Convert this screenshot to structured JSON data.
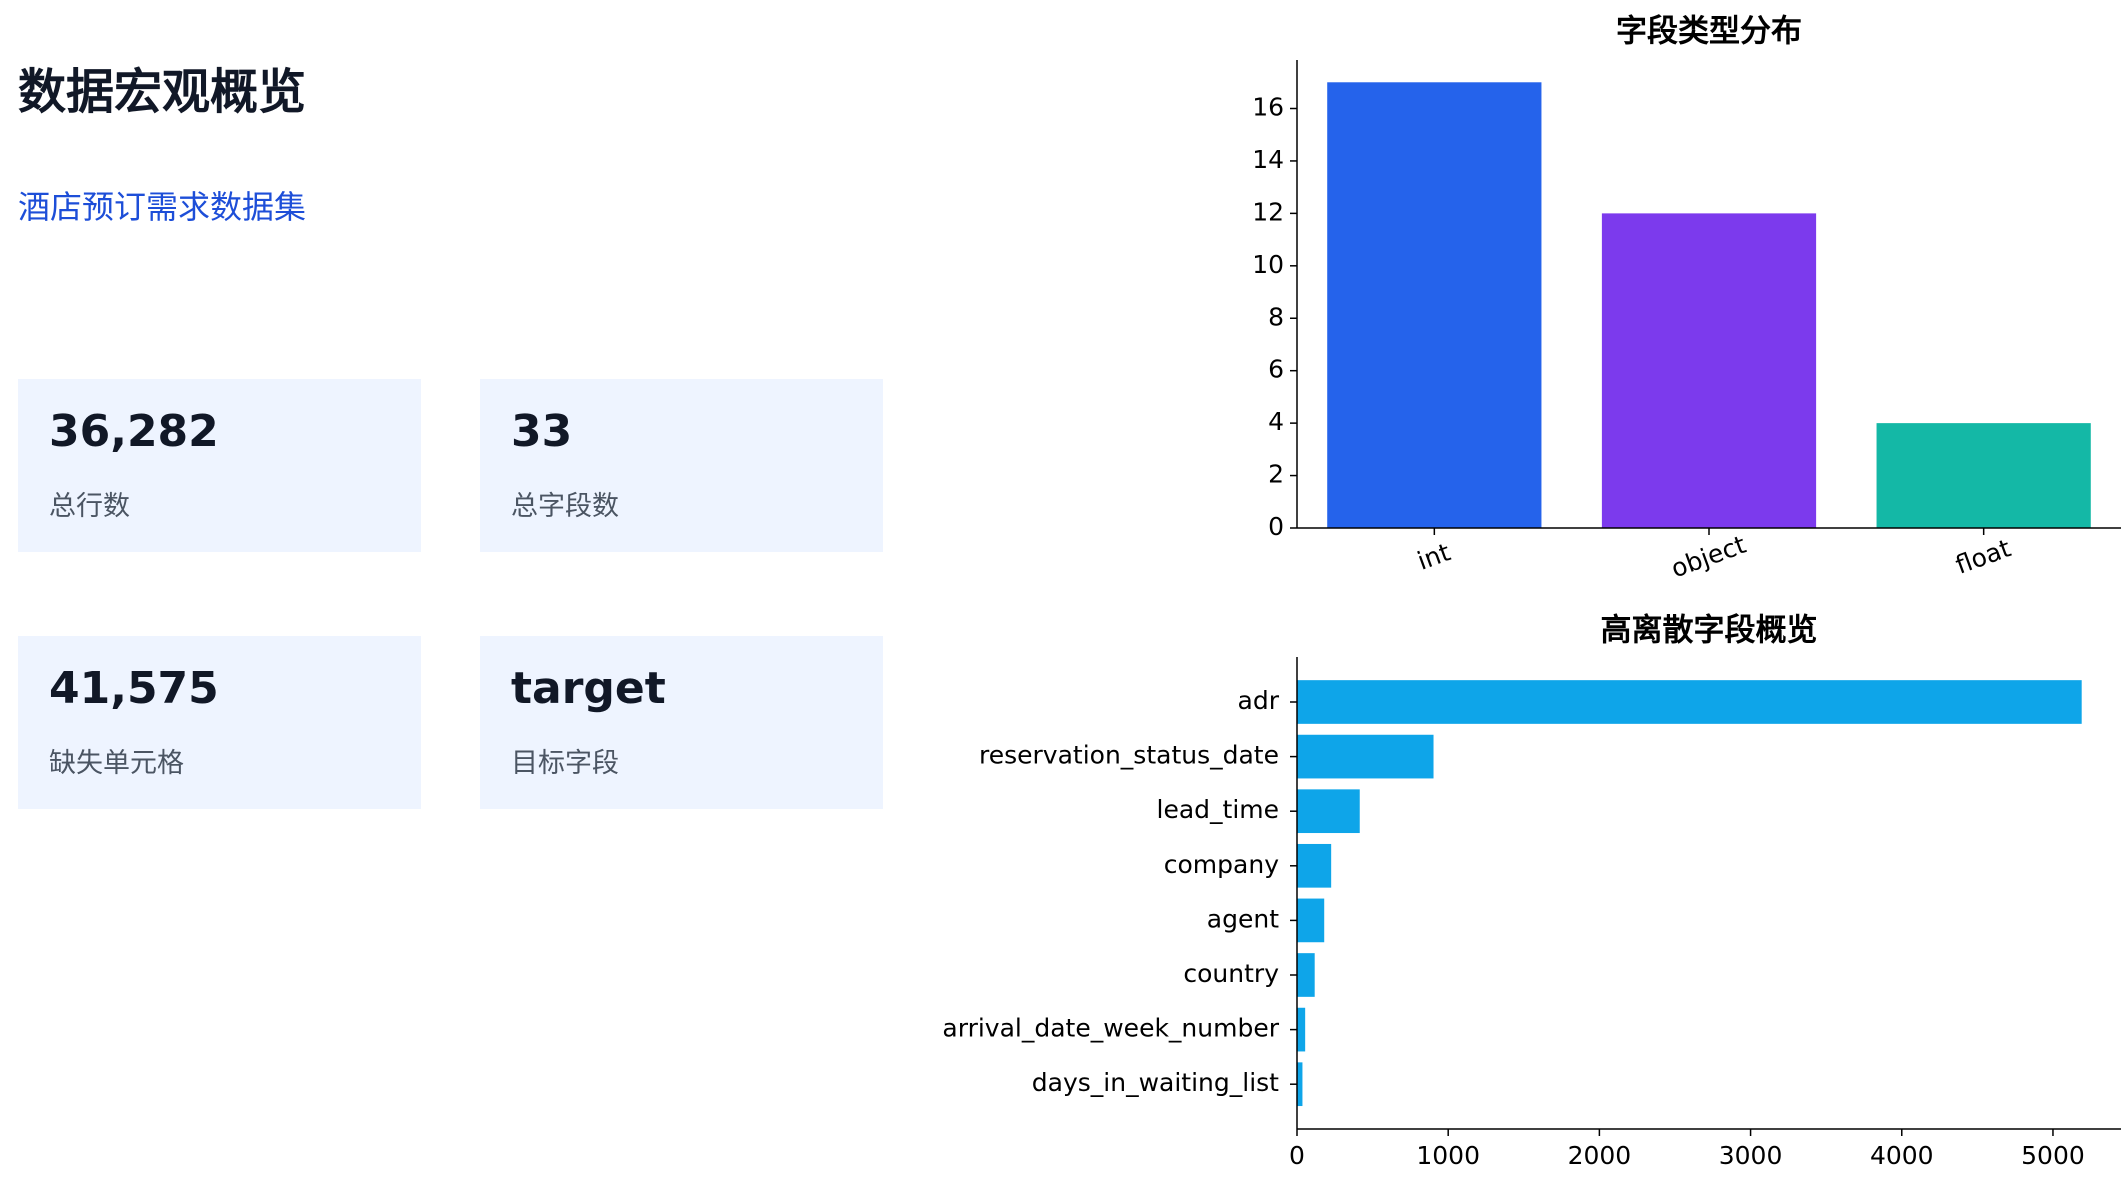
{
  "header": {
    "title": "数据宏观概览",
    "subtitle": "酒店预订需求数据集"
  },
  "cards": [
    {
      "value": "36,282",
      "label": "总行数"
    },
    {
      "value": "33",
      "label": "总字段数"
    },
    {
      "value": "41,575",
      "label": "缺失单元格"
    },
    {
      "value": "target",
      "label": "目标字段"
    }
  ],
  "chart_data": [
    {
      "type": "bar",
      "title": "字段类型分布",
      "categories": [
        "int",
        "object",
        "float"
      ],
      "values": [
        17,
        12,
        4
      ],
      "colors": [
        "#2563eb",
        "#7c3aed",
        "#14b8a6"
      ],
      "ylim": [
        0,
        17.85
      ],
      "yticks": [
        0,
        2,
        4,
        6,
        8,
        10,
        12,
        14,
        16
      ]
    },
    {
      "type": "barh",
      "title": "高离散字段概览",
      "categories": [
        "adr",
        "reservation_status_date",
        "lead_time",
        "company",
        "agent",
        "country",
        "arrival_date_week_number",
        "days_in_waiting_list"
      ],
      "values": [
        5190,
        903,
        415,
        226,
        180,
        117,
        54,
        36
      ],
      "color": "#0ea5e9",
      "xlim": [
        0,
        5450
      ],
      "xticks": [
        0,
        1000,
        2000,
        3000,
        4000,
        5000
      ]
    }
  ]
}
